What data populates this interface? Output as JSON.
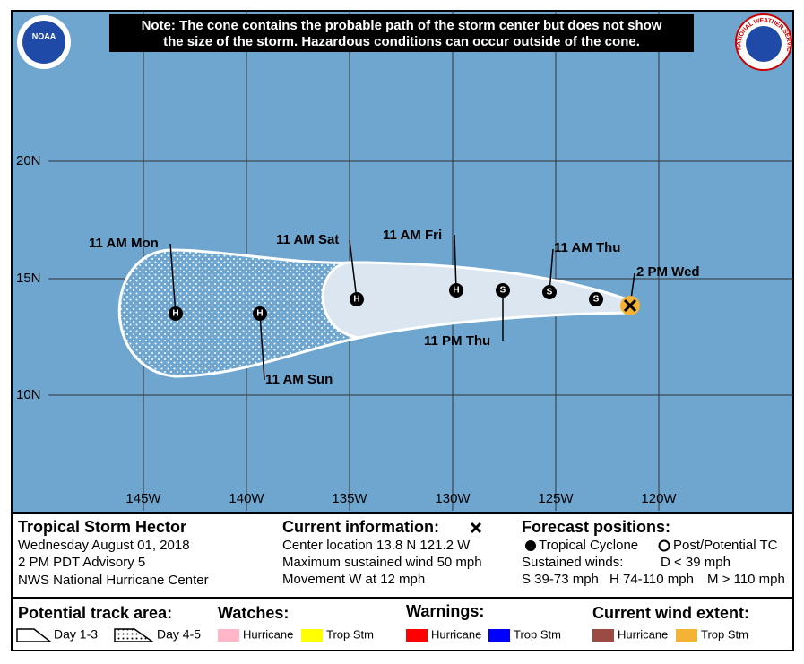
{
  "note": [
    "Note: The cone contains the probable path of the storm center but does not show",
    "the size of the storm. Hazardous conditions can occur outside of the cone."
  ],
  "logos": {
    "noaa": "NOAA",
    "nws": "NATIONAL WEATHER SERVICE"
  },
  "map": {
    "lat_labels": [
      "20N",
      "15N",
      "10N"
    ],
    "lon_labels": [
      "145W",
      "140W",
      "135W",
      "130W",
      "125W",
      "120W"
    ]
  },
  "track": {
    "symbols": [
      "S",
      "S",
      "S",
      "H",
      "H",
      "H",
      "H"
    ],
    "labels": [
      "2 PM Wed",
      "11 AM Thu",
      "11 PM Thu",
      "11 AM Fri",
      "11 AM Sat",
      "11 AM Sun",
      "11 AM Mon"
    ]
  },
  "info": {
    "storm": "Tropical Storm Hector",
    "date": "Wednesday August 01, 2018",
    "advisory": "2 PM PDT Advisory 5",
    "center": "NWS National Hurricane Center"
  },
  "current": {
    "title": "Current information:",
    "lines": [
      "Center location 13.8 N 121.2 W",
      "Maximum sustained wind 50 mph",
      "Movement W at 12 mph"
    ]
  },
  "forecast": {
    "title": "Forecast positions:",
    "tropical": "Tropical Cyclone",
    "post": "Post/Potential TC",
    "winds": "Sustained winds:",
    "d": "D < 39 mph",
    "s": "S 39-73 mph",
    "h": "H 74-110 mph",
    "m": "M > 110 mph"
  },
  "legend": {
    "track_title": "Potential track area:",
    "day13": "Day 1-3",
    "day45": "Day 4-5",
    "watches": "Watches:",
    "warnings": "Warnings:",
    "wind": "Current wind extent:",
    "watch_items": [
      "Hurricane",
      "Trop Stm"
    ],
    "warning_items": [
      "Hurricane",
      "Trop Stm"
    ],
    "wind_items": [
      "Hurricane",
      "Trop Stm"
    ]
  }
}
